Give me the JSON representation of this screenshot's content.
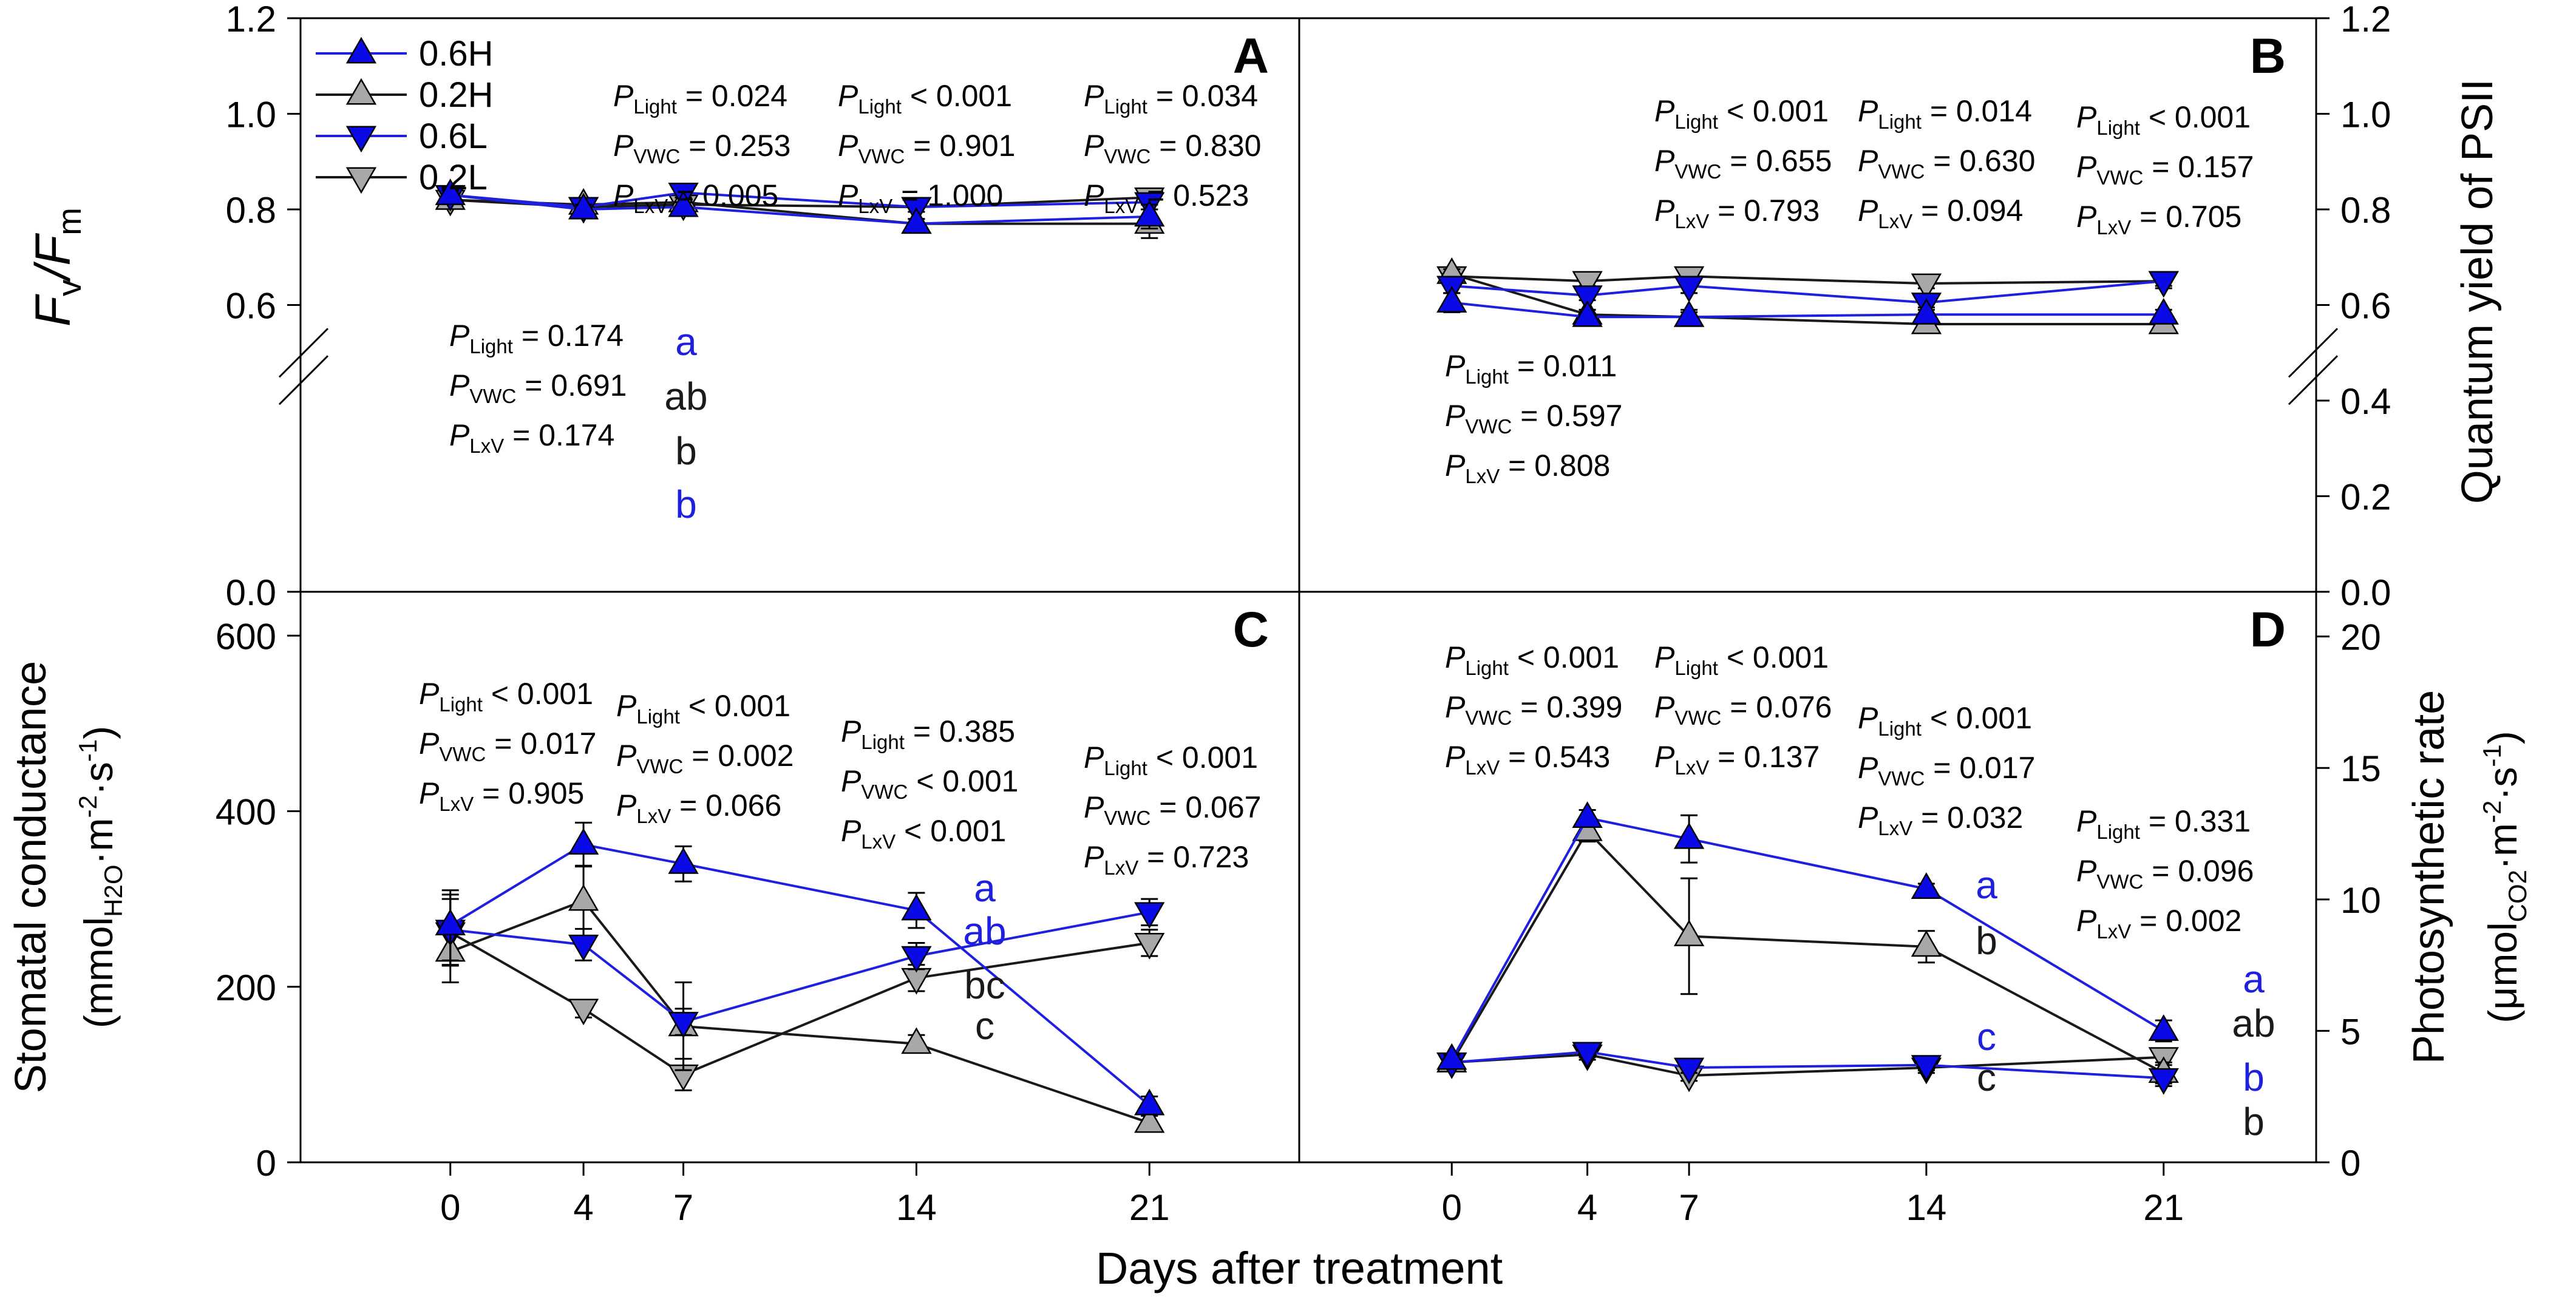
{
  "figure": {
    "xlabel": "Days after treatment",
    "colors": {
      "blue": "#1f1fe0",
      "black": "#1a1a1a",
      "marker_blue": "#0a0ae6",
      "marker_gray": "#a8a8a8"
    }
  },
  "legend": [
    {
      "label": "0.6H",
      "marker": "triangle-up",
      "fill": "blue",
      "line": "blue"
    },
    {
      "label": "0.2H",
      "marker": "triangle-up",
      "fill": "gray",
      "line": "black"
    },
    {
      "label": "0.6L",
      "marker": "triangle-down",
      "fill": "blue",
      "line": "blue"
    },
    {
      "label": "0.2L",
      "marker": "triangle-down",
      "fill": "gray",
      "line": "black"
    }
  ],
  "chart_data": [
    {
      "panel": "A",
      "type": "line",
      "ylabel_main": "F",
      "ylabel_sub1": "v",
      "ylabel_slash": "/F",
      "ylabel_sub2": "m",
      "y_axis_side": "left",
      "ylim": [
        0,
        1.2
      ],
      "yticks": [
        "0.0",
        "0.6",
        "0.8",
        "1.0",
        "1.2"
      ],
      "axis_break": true,
      "x": [
        0,
        4,
        7,
        14,
        21
      ],
      "xticks": [
        "0",
        "4",
        "7",
        "14",
        "21"
      ],
      "xlim": [
        -4.5,
        25.5
      ],
      "series": [
        {
          "name": "0.6H",
          "values": [
            0.83,
            0.8,
            0.805,
            0.77,
            0.785
          ],
          "err": [
            0.01,
            0.01,
            0.01,
            0.01,
            0.025
          ]
        },
        {
          "name": "0.2H",
          "values": [
            0.82,
            0.81,
            0.815,
            0.77,
            0.77
          ],
          "err": [
            0.01,
            0.01,
            0.01,
            0.01,
            0.03
          ]
        },
        {
          "name": "0.6L",
          "values": [
            0.83,
            0.805,
            0.835,
            0.805,
            0.815
          ],
          "err": [
            0.01,
            0.01,
            0.01,
            0.01,
            0.015
          ]
        },
        {
          "name": "0.2L",
          "values": [
            0.82,
            0.805,
            0.81,
            0.805,
            0.825
          ],
          "err": [
            0.01,
            0.01,
            0.01,
            0.01,
            0.015
          ]
        }
      ],
      "stats": [
        {
          "day": 4,
          "lines": [
            {
              "sub": "Light",
              "text": " = 0.174"
            },
            {
              "sub": "VWC",
              "text": " = 0.691"
            },
            {
              "sub": "LxV",
              "text": " = 0.174"
            }
          ]
        },
        {
          "day": 7,
          "lines": [
            {
              "sub": "Light",
              "text": " = 0.024"
            },
            {
              "sub": "VWC",
              "text": " = 0.253"
            },
            {
              "sub": "LxV",
              "text": " = 0.005"
            }
          ]
        },
        {
          "day": 14,
          "lines": [
            {
              "sub": "Light",
              "text": " < 0.001"
            },
            {
              "sub": "VWC",
              "text": " = 0.901"
            },
            {
              "sub": "LxV",
              "text": " = 1.000"
            }
          ]
        },
        {
          "day": 21,
          "lines": [
            {
              "sub": "Light",
              "text": " = 0.034"
            },
            {
              "sub": "VWC",
              "text": " = 0.830"
            },
            {
              "sub": "LxV",
              "text": " = 0.523"
            }
          ]
        }
      ],
      "letters": [
        {
          "day": 7,
          "text": "a",
          "color": "blue"
        },
        {
          "day": 7,
          "text": "ab",
          "color": "black"
        },
        {
          "day": 7,
          "text": "b",
          "color": "black"
        },
        {
          "day": 7,
          "text": "b",
          "color": "blue"
        }
      ]
    },
    {
      "panel": "B",
      "type": "line",
      "ylabel": "Quantum yield of PSII",
      "y_axis_side": "right",
      "ylim": [
        0,
        1.2
      ],
      "yticks": [
        "0.0",
        "0.2",
        "0.4",
        "0.6",
        "0.8",
        "1.0",
        "1.2"
      ],
      "axis_break": true,
      "x": [
        0,
        4,
        7,
        14,
        21
      ],
      "xticks": [
        "0",
        "4",
        "7",
        "14",
        "21"
      ],
      "xlim": [
        -4.5,
        25.5
      ],
      "series": [
        {
          "name": "0.6H",
          "values": [
            0.605,
            0.575,
            0.575,
            0.58,
            0.58
          ],
          "err": [
            0.02,
            0.015,
            0.015,
            0.015,
            0.01
          ]
        },
        {
          "name": "0.2H",
          "values": [
            0.665,
            0.58,
            0.575,
            0.56,
            0.56
          ],
          "err": [
            0.01,
            0.01,
            0.01,
            0.015,
            0.01
          ]
        },
        {
          "name": "0.6L",
          "values": [
            0.64,
            0.62,
            0.64,
            0.605,
            0.65
          ],
          "err": [
            0.015,
            0.01,
            0.015,
            0.015,
            0.015
          ]
        },
        {
          "name": "0.2L",
          "values": [
            0.66,
            0.65,
            0.66,
            0.645,
            0.65
          ],
          "err": [
            0.01,
            0.01,
            0.01,
            0.01,
            0.01
          ]
        }
      ],
      "stats": [
        {
          "day": 0,
          "lines": [
            {
              "sub": "Light",
              "text": " = 0.011"
            },
            {
              "sub": "VWC",
              "text": " = 0.597"
            },
            {
              "sub": "LxV",
              "text": " = 0.808"
            }
          ]
        },
        {
          "day": 4,
          "lines": [
            {
              "sub": "Light",
              "text": " < 0.001"
            },
            {
              "sub": "VWC",
              "text": " = 0.655"
            },
            {
              "sub": "LxV",
              "text": " = 0.793"
            }
          ]
        },
        {
          "day": 14,
          "lines": [
            {
              "sub": "Light",
              "text": " = 0.014"
            },
            {
              "sub": "VWC",
              "text": " = 0.630"
            },
            {
              "sub": "LxV",
              "text": " = 0.094"
            }
          ]
        },
        {
          "day": 21,
          "lines": [
            {
              "sub": "Light",
              "text": " < 0.001"
            },
            {
              "sub": "VWC",
              "text": " = 0.157"
            },
            {
              "sub": "LxV",
              "text": " = 0.705"
            }
          ]
        }
      ],
      "letters": []
    },
    {
      "panel": "C",
      "type": "line",
      "ylabel_top": "Stomatal conductance",
      "ylabel_bottom_pre": "(mmol",
      "ylabel_bottom_sub": "H2O",
      "ylabel_bottom_mid": "·m",
      "ylabel_bottom_sup1": "-2",
      "ylabel_bottom_mid2": "·s",
      "ylabel_bottom_sup2": "-1",
      "ylabel_bottom_post": ")",
      "y_axis_side": "left",
      "ylim": [
        0,
        650
      ],
      "yticks": [
        "0",
        "200",
        "400",
        "600"
      ],
      "x": [
        0,
        4,
        7,
        14,
        21
      ],
      "xticks": [
        "0",
        "4",
        "7",
        "14",
        "21"
      ],
      "xlim": [
        -4.5,
        25.5
      ],
      "series": [
        {
          "name": "0.6H",
          "values": [
            270,
            362,
            340,
            287,
            65
          ],
          "err": [
            40,
            25,
            20,
            20,
            10
          ]
        },
        {
          "name": "0.2H",
          "values": [
            240,
            298,
            155,
            135,
            45
          ],
          "err": [
            35,
            40,
            50,
            10,
            8
          ]
        },
        {
          "name": "0.6L",
          "values": [
            265,
            248,
            160,
            235,
            285
          ],
          "err": [
            40,
            18,
            15,
            15,
            15
          ]
        },
        {
          "name": "0.2L",
          "values": [
            262,
            175,
            100,
            210,
            250
          ],
          "err": [
            38,
            10,
            18,
            15,
            15
          ]
        }
      ],
      "stats": [
        {
          "day": 0,
          "lines": [
            {
              "sub": "Light",
              "text": " < 0.001"
            },
            {
              "sub": "VWC",
              "text": " = 0.017"
            },
            {
              "sub": "LxV",
              "text": " = 0.905"
            }
          ]
        },
        {
          "day": 7,
          "lines": [
            {
              "sub": "Light",
              "text": " < 0.001"
            },
            {
              "sub": "VWC",
              "text": " = 0.002"
            },
            {
              "sub": "LxV",
              "text": " = 0.066"
            }
          ]
        },
        {
          "day": 14,
          "lines": [
            {
              "sub": "Light",
              "text": " = 0.385"
            },
            {
              "sub": "VWC",
              "text": " < 0.001"
            },
            {
              "sub": "LxV",
              "text": " < 0.001"
            }
          ]
        },
        {
          "day": 21,
          "lines": [
            {
              "sub": "Light",
              "text": " < 0.001"
            },
            {
              "sub": "VWC",
              "text": " = 0.067"
            },
            {
              "sub": "LxV",
              "text": " = 0.723"
            }
          ]
        }
      ],
      "letters": [
        {
          "day": 14,
          "text": "a",
          "color": "blue"
        },
        {
          "day": 14,
          "text": "ab",
          "color": "blue"
        },
        {
          "day": 14,
          "text": "bc",
          "color": "black"
        },
        {
          "day": 14,
          "text": "c",
          "color": "black"
        }
      ]
    },
    {
      "panel": "D",
      "type": "line",
      "ylabel_top": "Photosynthetic rate",
      "ylabel_bottom_pre": "(μmol",
      "ylabel_bottom_sub": "CO2",
      "ylabel_bottom_mid": "·m",
      "ylabel_bottom_sup1": "-2",
      "ylabel_bottom_mid2": "·s",
      "ylabel_bottom_sup2": "-1",
      "ylabel_bottom_post": ")",
      "y_axis_side": "right",
      "ylim": [
        0,
        21.7
      ],
      "yticks": [
        "0",
        "5",
        "10",
        "15",
        "20"
      ],
      "x": [
        0,
        4,
        7,
        14,
        21
      ],
      "xticks": [
        "0",
        "4",
        "7",
        "14",
        "21"
      ],
      "xlim": [
        -4.5,
        25.5
      ],
      "series": [
        {
          "name": "0.6H",
          "values": [
            3.9,
            13.1,
            12.3,
            10.4,
            5.0
          ],
          "err": [
            0.2,
            0.3,
            0.9,
            0.2,
            0.4
          ]
        },
        {
          "name": "0.2H",
          "values": [
            3.8,
            12.6,
            8.6,
            8.2,
            3.4
          ],
          "err": [
            0.2,
            0.4,
            2.2,
            0.6,
            0.4
          ]
        },
        {
          "name": "0.6L",
          "values": [
            3.8,
            4.2,
            3.6,
            3.7,
            3.2
          ],
          "err": [
            0.2,
            0.2,
            0.2,
            0.2,
            0.3
          ]
        },
        {
          "name": "0.2L",
          "values": [
            3.8,
            4.1,
            3.3,
            3.6,
            4.0
          ],
          "err": [
            0.2,
            0.2,
            0.2,
            0.2,
            0.3
          ]
        }
      ],
      "stats": [
        {
          "day": 0,
          "lines": [
            {
              "sub": "Light",
              "text": " < 0.001"
            },
            {
              "sub": "VWC",
              "text": " = 0.399"
            },
            {
              "sub": "LxV",
              "text": " = 0.543"
            }
          ]
        },
        {
          "day": 7,
          "lines": [
            {
              "sub": "Light",
              "text": " < 0.001"
            },
            {
              "sub": "VWC",
              "text": " = 0.076"
            },
            {
              "sub": "LxV",
              "text": " = 0.137"
            }
          ]
        },
        {
          "day": 14,
          "lines": [
            {
              "sub": "Light",
              "text": " < 0.001"
            },
            {
              "sub": "VWC",
              "text": " = 0.017"
            },
            {
              "sub": "LxV",
              "text": " = 0.032"
            }
          ]
        },
        {
          "day": 21,
          "lines": [
            {
              "sub": "Light",
              "text": " = 0.331"
            },
            {
              "sub": "VWC",
              "text": " = 0.096"
            },
            {
              "sub": "LxV",
              "text": " = 0.002"
            }
          ]
        }
      ],
      "letters": [
        {
          "day": 14,
          "text": "a",
          "color": "blue"
        },
        {
          "day": 14,
          "text": "b",
          "color": "black"
        },
        {
          "day": 14,
          "text": "c",
          "color": "blue"
        },
        {
          "day": 14,
          "text": "c",
          "color": "black"
        },
        {
          "day": 21,
          "text": "a",
          "color": "blue"
        },
        {
          "day": 21,
          "text": "ab",
          "color": "black"
        },
        {
          "day": 21,
          "text": "b",
          "color": "blue"
        },
        {
          "day": 21,
          "text": "b",
          "color": "black"
        }
      ]
    }
  ]
}
